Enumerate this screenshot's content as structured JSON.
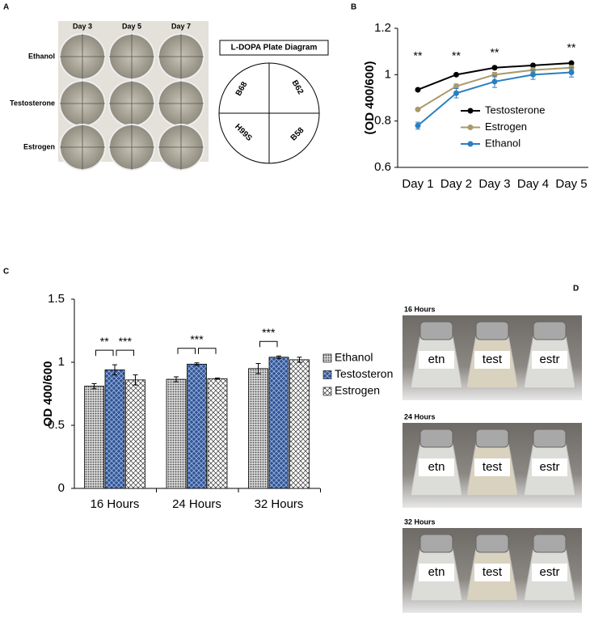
{
  "panel_labels": [
    "A",
    "B",
    "C",
    "D"
  ],
  "plates": {
    "columns": [
      "Day 3",
      "Day 5",
      "Day 7"
    ],
    "rows": [
      "Ethanol",
      "Testosterone",
      "Estrogen"
    ],
    "diagram_title": "L-DOPA Plate Diagram",
    "quadrants": [
      "B68",
      "B62",
      "H99S",
      "B58"
    ]
  },
  "photos": {
    "panels": [
      "16 Hours",
      "24 Hours",
      "32 Hours"
    ],
    "flasks": [
      "etn",
      "test",
      "estr"
    ]
  },
  "chart_data": [
    {
      "type": "line",
      "ylabel": "(OD 400/600)",
      "categories": [
        "Day 1",
        "Day 2",
        "Day 3",
        "Day 4",
        "Day 5"
      ],
      "ylim": [
        0.6,
        1.2
      ],
      "yticks": [
        0.6,
        0.8,
        1,
        1.2
      ],
      "legend": "right",
      "series": [
        {
          "name": "Testosterone",
          "color": "#000000",
          "values": [
            0.935,
            1.0,
            1.03,
            1.04,
            1.05
          ],
          "errors": [
            0.005,
            0.005,
            0.005,
            0.005,
            0.005
          ]
        },
        {
          "name": "Estrogen",
          "color": "#a89a6a",
          "values": [
            0.85,
            0.95,
            1.0,
            1.02,
            1.03
          ],
          "errors": [
            0.005,
            0.01,
            0.01,
            0.01,
            0.01
          ]
        },
        {
          "name": "Ethanol",
          "color": "#2a7fc1",
          "values": [
            0.78,
            0.92,
            0.97,
            1.0,
            1.01
          ],
          "errors": [
            0.015,
            0.02,
            0.025,
            0.02,
            0.02
          ]
        }
      ],
      "annotations": [
        {
          "text": "**",
          "category": 0
        },
        {
          "text": "**",
          "category": 1
        },
        {
          "text": "**",
          "category": 2
        },
        {
          "text": "**",
          "category": 4
        }
      ]
    },
    {
      "type": "bar",
      "ylabel": "OD 400/600",
      "categories": [
        "16 Hours",
        "24 Hours",
        "32 Hours"
      ],
      "ylim": [
        0,
        1.5
      ],
      "yticks": [
        0,
        0.5,
        1,
        1.5
      ],
      "legend": "right",
      "series": [
        {
          "name": "Ethanol",
          "color": "#9a9a9a",
          "pattern": "dots",
          "values": [
            0.81,
            0.865,
            0.95
          ],
          "errors": [
            0.02,
            0.02,
            0.04
          ]
        },
        {
          "name": "Testosteron",
          "color": "#2f5597",
          "pattern": "crosshatch",
          "values": [
            0.94,
            0.985,
            1.04
          ],
          "errors": [
            0.04,
            0.01,
            0.01
          ]
        },
        {
          "name": "Estrogen",
          "color": "#ffffff",
          "pattern": "diamonds",
          "values": [
            0.86,
            0.87,
            1.02
          ],
          "errors": [
            0.04,
            0.005,
            0.02
          ]
        }
      ],
      "significance": [
        {
          "group": 0,
          "from": 0,
          "to": 1,
          "label": "**"
        },
        {
          "group": 0,
          "from": 1,
          "to": 2,
          "label": "***"
        },
        {
          "group": 1,
          "from": 0,
          "to": 2,
          "label": "***"
        },
        {
          "group": 2,
          "from": 0,
          "to": 1,
          "label": "***"
        }
      ]
    }
  ]
}
